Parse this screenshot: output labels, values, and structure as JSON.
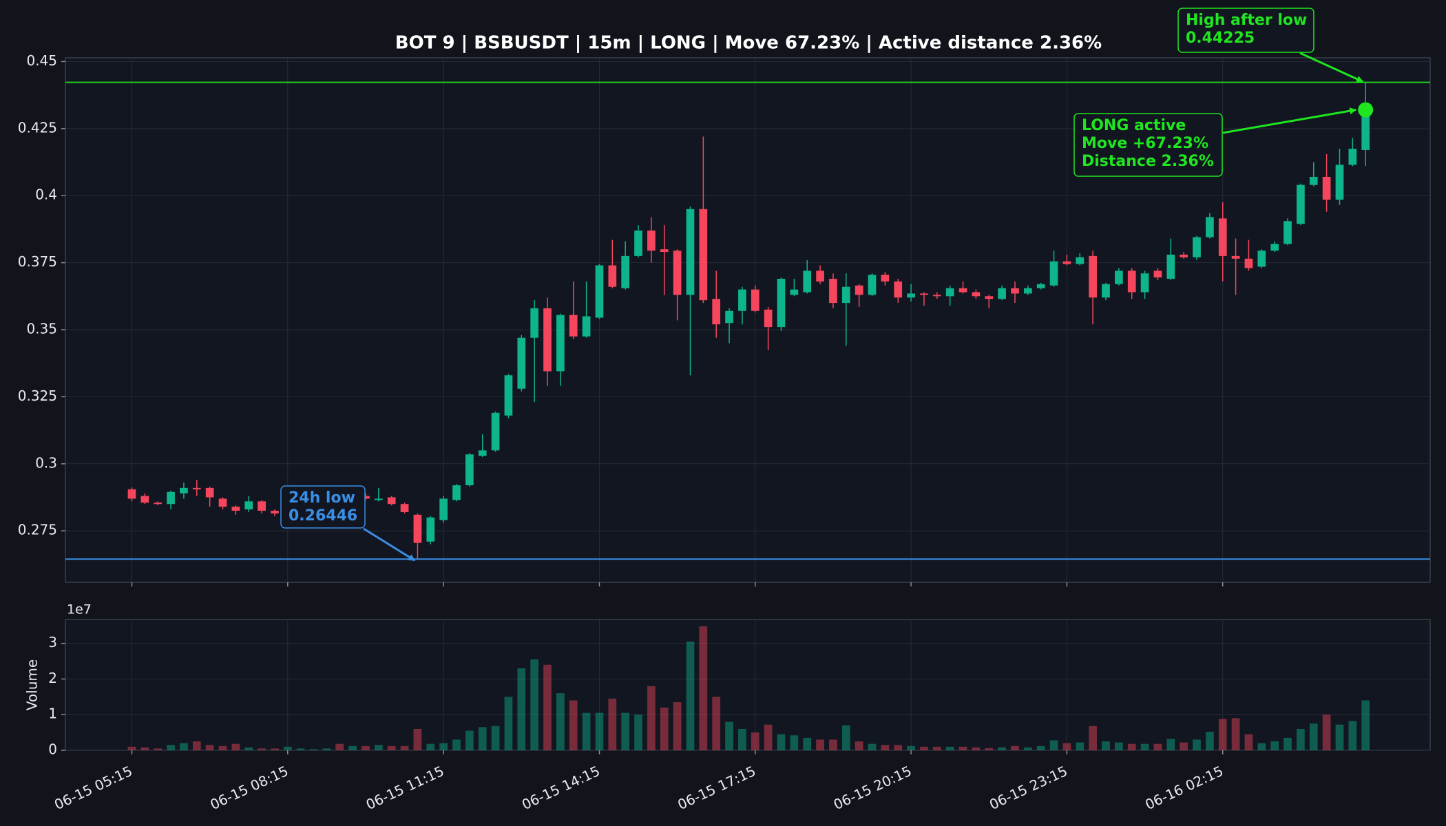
{
  "chart_data": {
    "type": "candlestick",
    "title": "BOT 9 | BSBUSDT | 15m | LONG | Move 67.23% | Active distance 2.36%",
    "categories": [
      "06-15 05:15",
      null,
      null,
      null,
      null,
      null,
      null,
      null,
      null,
      null,
      null,
      null,
      "06-15 08:15",
      null,
      null,
      null,
      null,
      null,
      null,
      null,
      null,
      null,
      null,
      null,
      "06-15 11:15",
      null,
      null,
      null,
      null,
      null,
      null,
      null,
      null,
      null,
      null,
      null,
      "06-15 14:15",
      null,
      null,
      null,
      null,
      null,
      null,
      null,
      null,
      null,
      null,
      null,
      "06-15 17:15",
      null,
      null,
      null,
      null,
      null,
      null,
      null,
      null,
      null,
      null,
      null,
      "06-15 20:15",
      null,
      null,
      null,
      null,
      null,
      null,
      null,
      null,
      null,
      null,
      null,
      "06-15 23:15",
      null,
      null,
      null,
      null,
      null,
      null,
      null,
      null,
      null,
      null,
      null,
      "06-16 02:15",
      null,
      null,
      null,
      null,
      null,
      null,
      null,
      null,
      null,
      null,
      null
    ],
    "open": [
      0.2905,
      0.288,
      0.2855,
      0.285,
      0.289,
      0.291,
      0.291,
      0.287,
      0.284,
      0.283,
      0.286,
      0.2825,
      0.285,
      0.2855,
      0.286,
      0.2865,
      0.287,
      0.287,
      0.288,
      0.2865,
      0.2875,
      0.285,
      0.281,
      0.271,
      0.279,
      0.2865,
      0.292,
      0.303,
      0.305,
      0.318,
      0.328,
      0.347,
      0.358,
      0.3345,
      0.3555,
      0.3475,
      0.3545,
      0.374,
      0.3655,
      0.3775,
      0.387,
      0.38,
      0.3795,
      0.363,
      0.395,
      0.3615,
      0.3525,
      0.357,
      0.365,
      0.3575,
      0.351,
      0.363,
      0.364,
      0.372,
      0.369,
      0.36,
      0.3665,
      0.363,
      0.3705,
      0.368,
      0.362,
      0.3635,
      0.363,
      0.3625,
      0.3655,
      0.364,
      0.3625,
      0.3615,
      0.3655,
      0.3635,
      0.3655,
      0.3665,
      0.3755,
      0.3745,
      0.3775,
      0.362,
      0.367,
      0.372,
      0.364,
      0.372,
      0.369,
      0.378,
      0.377,
      0.3845,
      0.3915,
      0.3775,
      0.3765,
      0.3735,
      0.3795,
      0.382,
      0.3895,
      0.404,
      0.407,
      0.3985,
      0.4115,
      0.417
    ],
    "high": [
      0.2912,
      0.289,
      0.286,
      0.29,
      0.293,
      0.294,
      0.2915,
      0.2875,
      0.2845,
      0.288,
      0.2865,
      0.283,
      0.2865,
      0.287,
      0.2875,
      0.288,
      0.288,
      0.2885,
      0.289,
      0.291,
      0.288,
      0.2855,
      0.2815,
      0.2805,
      0.288,
      0.2925,
      0.304,
      0.311,
      0.3195,
      0.3335,
      0.348,
      0.361,
      0.362,
      0.356,
      0.368,
      0.368,
      0.3745,
      0.3835,
      0.383,
      0.389,
      0.392,
      0.389,
      0.38,
      0.396,
      0.422,
      0.372,
      0.358,
      0.366,
      0.3665,
      0.3585,
      0.3695,
      0.369,
      0.376,
      0.374,
      0.371,
      0.371,
      0.367,
      0.371,
      0.3715,
      0.369,
      0.367,
      0.364,
      0.364,
      0.3665,
      0.368,
      0.365,
      0.363,
      0.3665,
      0.368,
      0.3665,
      0.3675,
      0.3795,
      0.378,
      0.3785,
      0.3795,
      0.3675,
      0.373,
      0.373,
      0.372,
      0.373,
      0.384,
      0.379,
      0.385,
      0.3935,
      0.3975,
      0.384,
      0.3835,
      0.38,
      0.383,
      0.3915,
      0.4045,
      0.4125,
      0.4155,
      0.4175,
      0.4215,
      0.44225
    ],
    "low": [
      0.286,
      0.285,
      0.2845,
      0.283,
      0.287,
      0.288,
      0.284,
      0.283,
      0.281,
      0.282,
      0.2815,
      0.2805,
      0.2845,
      0.285,
      0.2855,
      0.286,
      0.286,
      0.2865,
      0.2865,
      0.286,
      0.2845,
      0.2815,
      0.26446,
      0.27,
      0.278,
      0.286,
      0.2915,
      0.3025,
      0.3045,
      0.317,
      0.327,
      0.323,
      0.329,
      0.329,
      0.3465,
      0.347,
      0.354,
      0.3655,
      0.365,
      0.377,
      0.375,
      0.363,
      0.3535,
      0.333,
      0.36,
      0.347,
      0.345,
      0.352,
      0.3565,
      0.3425,
      0.3495,
      0.3625,
      0.3635,
      0.367,
      0.358,
      0.344,
      0.3585,
      0.3625,
      0.3665,
      0.36,
      0.3605,
      0.359,
      0.3615,
      0.359,
      0.3635,
      0.3615,
      0.358,
      0.361,
      0.36,
      0.363,
      0.365,
      0.366,
      0.374,
      0.374,
      0.352,
      0.361,
      0.3665,
      0.3615,
      0.3615,
      0.3685,
      0.3685,
      0.3765,
      0.376,
      0.384,
      0.368,
      0.363,
      0.372,
      0.373,
      0.379,
      0.3815,
      0.389,
      0.4035,
      0.394,
      0.3965,
      0.411,
      0.411
    ],
    "close": [
      0.287,
      0.2855,
      0.285,
      0.2895,
      0.291,
      0.2905,
      0.2875,
      0.284,
      0.2825,
      0.286,
      0.2825,
      0.2815,
      0.2855,
      0.286,
      0.2865,
      0.287,
      0.2865,
      0.2875,
      0.287,
      0.287,
      0.285,
      0.282,
      0.2705,
      0.28,
      0.287,
      0.292,
      0.3035,
      0.305,
      0.319,
      0.333,
      0.347,
      0.358,
      0.3345,
      0.3555,
      0.3475,
      0.355,
      0.374,
      0.366,
      0.3775,
      0.387,
      0.3795,
      0.379,
      0.363,
      0.395,
      0.361,
      0.352,
      0.357,
      0.365,
      0.357,
      0.351,
      0.369,
      0.365,
      0.372,
      0.368,
      0.36,
      0.366,
      0.363,
      0.3705,
      0.368,
      0.362,
      0.3635,
      0.363,
      0.3625,
      0.3655,
      0.364,
      0.3625,
      0.3615,
      0.3655,
      0.3635,
      0.3655,
      0.367,
      0.3755,
      0.3745,
      0.377,
      0.362,
      0.367,
      0.372,
      0.364,
      0.371,
      0.3695,
      0.378,
      0.377,
      0.3845,
      0.392,
      0.3775,
      0.3765,
      0.373,
      0.3795,
      0.382,
      0.3905,
      0.404,
      0.407,
      0.3985,
      0.4115,
      0.4175,
      0.432
    ],
    "up_color": "#0db48c",
    "down_color": "#f6465d",
    "ylim": [
      0.2558,
      0.4514
    ],
    "yticks": [
      0.275,
      0.3,
      0.325,
      0.35,
      0.375,
      0.4,
      0.425,
      0.45
    ],
    "grid": true,
    "hlines": [
      {
        "value": 0.44225,
        "color": "#1fd41f"
      },
      {
        "value": 0.26446,
        "color": "#3a8ee6"
      }
    ],
    "annotations": [
      {
        "lines": [
          "24h low",
          "0.26446"
        ],
        "color": "#3a8ee6"
      },
      {
        "lines": [
          "High after low",
          "0.44225"
        ],
        "color": "#1fe61f"
      },
      {
        "lines": [
          "LONG active",
          "Move +67.23%",
          "Distance 2.36%"
        ],
        "color": "#1fe61f"
      }
    ],
    "volume": {
      "ylabel": "Volume",
      "offset_label": "1e7",
      "values": [
        0.1,
        0.08,
        0.05,
        0.15,
        0.2,
        0.25,
        0.15,
        0.12,
        0.18,
        0.08,
        0.05,
        0.05,
        0.1,
        0.05,
        0.03,
        0.05,
        0.18,
        0.12,
        0.12,
        0.15,
        0.12,
        0.12,
        0.6,
        0.18,
        0.2,
        0.3,
        0.55,
        0.65,
        0.68,
        1.5,
        2.3,
        2.55,
        2.4,
        1.6,
        1.4,
        1.05,
        1.05,
        1.45,
        1.05,
        1.0,
        1.8,
        1.2,
        1.35,
        3.05,
        3.48,
        1.5,
        0.8,
        0.6,
        0.5,
        0.72,
        0.45,
        0.42,
        0.35,
        0.3,
        0.3,
        0.7,
        0.25,
        0.18,
        0.15,
        0.15,
        0.12,
        0.1,
        0.1,
        0.1,
        0.1,
        0.08,
        0.06,
        0.08,
        0.12,
        0.08,
        0.12,
        0.28,
        0.2,
        0.22,
        0.68,
        0.25,
        0.22,
        0.18,
        0.18,
        0.18,
        0.32,
        0.22,
        0.3,
        0.52,
        0.88,
        0.9,
        0.45,
        0.2,
        0.25,
        0.35,
        0.6,
        0.75,
        1.0,
        0.72,
        0.82,
        1.4
      ],
      "ylim": [
        0,
        3.67
      ],
      "yticks": [
        0,
        1,
        2,
        3
      ]
    }
  }
}
